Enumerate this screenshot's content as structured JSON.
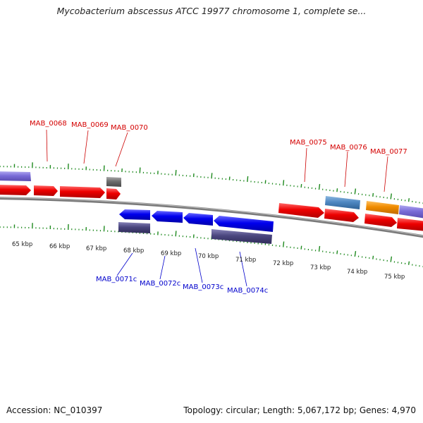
{
  "title": "Mycobacterium abscessus ATCC 19977 chromosome 1, complete se...",
  "footer": {
    "accession": "Accession: NC_010397",
    "summary": "Topology: circular; Length: 5,067,172 bp; Genes: 4,970"
  },
  "colors": {
    "red": "#ee0000",
    "blue": "#0000ee",
    "slate_purple": "#7a6cd8",
    "dark_navy": "#4a467e",
    "gray_gene": "#6e6e6e",
    "steel_blue": "#4f88c2",
    "orange": "#f08c00",
    "tick_green": "#1f8a1f",
    "backbone": "#808080"
  },
  "kbp_labels": [
    "65 kbp",
    "66 kbp",
    "67 kbp",
    "68 kbp",
    "69 kbp",
    "70 kbp",
    "71 kbp",
    "72 kbp",
    "73 kbp",
    "74 kbp",
    "75 kbp"
  ],
  "gene_labels_top": [
    "MAB_0068",
    "MAB_0069",
    "MAB_0070",
    "MAB_0075",
    "MAB_0076",
    "MAB_0077"
  ],
  "gene_labels_bottom": [
    "MAB_0071c",
    "MAB_0072c",
    "MAB_0073c",
    "MAB_0074c"
  ]
}
